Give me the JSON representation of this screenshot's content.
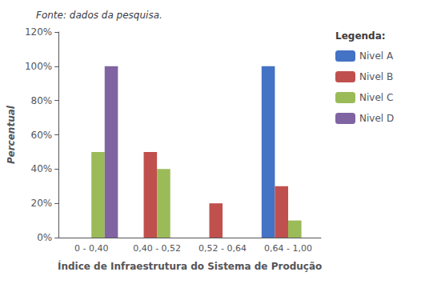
{
  "chart_data": {
    "type": "bar",
    "title": "Fonte: dados da pesquisa.",
    "categories": [
      "0 - 0,40",
      "0,40 - 0,52",
      "0,52 - 0,64",
      "0,64 - 1,00"
    ],
    "series": [
      {
        "name": "Nivel A",
        "color": "#4472C4",
        "values": [
          0,
          0,
          0,
          100
        ]
      },
      {
        "name": "Nivel B",
        "color": "#C0504D",
        "values": [
          0,
          50,
          20,
          30
        ]
      },
      {
        "name": "Nivel C",
        "color": "#9BBB59",
        "values": [
          50,
          40,
          0,
          10
        ]
      },
      {
        "name": "Nivel D",
        "color": "#8064A2",
        "values": [
          100,
          0,
          0,
          0
        ]
      }
    ],
    "xlabel": "Índice de Infraestrutura do Sistema de Produção",
    "ylabel": "Percentual",
    "legend_title": "Legenda:",
    "legend": "right",
    "ylim": [
      0,
      120
    ],
    "yticks": [
      {
        "value": 0,
        "label": "0%"
      },
      {
        "value": 20,
        "label": "20%"
      },
      {
        "value": 40,
        "label": "40%"
      },
      {
        "value": 60,
        "label": "60%"
      },
      {
        "value": 80,
        "label": "80%"
      },
      {
        "value": 100,
        "label": "100%"
      },
      {
        "value": 120,
        "label": "120%"
      }
    ],
    "grid": false
  }
}
